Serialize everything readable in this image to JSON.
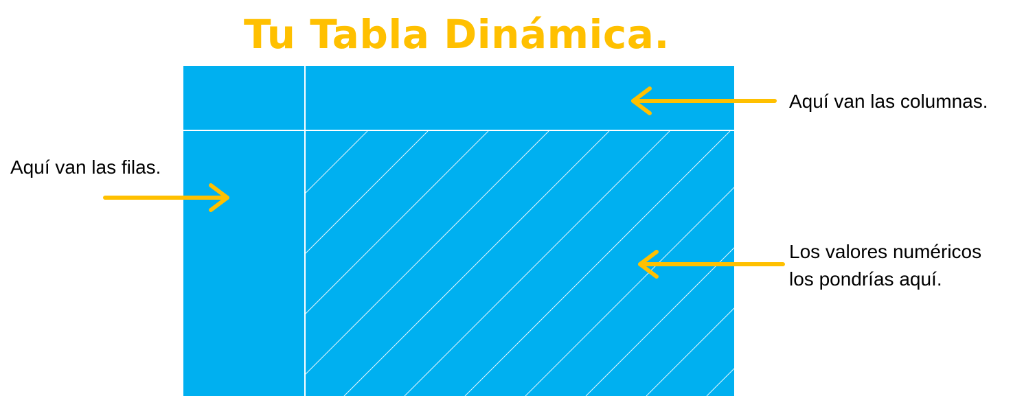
{
  "title": "Tu Tabla Dinámica.",
  "labels": {
    "rows": "Aquí van las filas.",
    "columns": "Aquí van las columnas.",
    "values_line1": "Los valores numéricos",
    "values_line2": "los pondrías aquí."
  },
  "colors": {
    "title": "#FFC000",
    "arrow": "#FFC000",
    "table_fill": "#00B0F0",
    "divider": "#FFFFFF",
    "label_text": "#000000"
  }
}
